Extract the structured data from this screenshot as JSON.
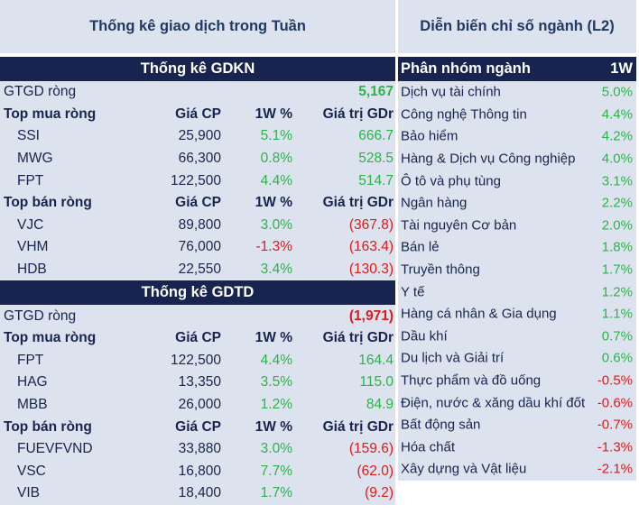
{
  "left_header": "Thống kê giao dịch trong Tuần",
  "right_header": "Diễn biến chỉ số ngành (L2)",
  "colors": {
    "navy": "#17244f",
    "panel_bg": "#dce3ee",
    "positive": "#2db34a",
    "negative": "#e01919"
  },
  "gdkn": {
    "title": "Thống kê GDKN",
    "net_label": "GTGD ròng",
    "net_value": "5,167",
    "buy": {
      "label": "Top mua ròng",
      "col_price": "Giá CP",
      "col_change": "1W %",
      "col_value": "Giá trị GDr",
      "rows": [
        {
          "ticker": "SSI",
          "price": "25,900",
          "change": "5.1%",
          "value": "666.7"
        },
        {
          "ticker": "MWG",
          "price": "66,300",
          "change": "0.8%",
          "value": "528.5"
        },
        {
          "ticker": "FPT",
          "price": "122,500",
          "change": "4.4%",
          "value": "514.7"
        }
      ]
    },
    "sell": {
      "label": "Top bán ròng",
      "col_price": "Giá CP",
      "col_change": "1W %",
      "col_value": "Giá trị GDr",
      "rows": [
        {
          "ticker": "VJC",
          "price": "89,800",
          "change": "3.0%",
          "value": "(367.8)"
        },
        {
          "ticker": "VHM",
          "price": "76,000",
          "change": "-1.3%",
          "value": "(163.4)"
        },
        {
          "ticker": "HDB",
          "price": "22,550",
          "change": "3.4%",
          "value": "(130.3)"
        }
      ]
    }
  },
  "gdtd": {
    "title": "Thống kê GDTD",
    "net_label": "GTGD ròng",
    "net_value": "(1,971)",
    "buy": {
      "label": "Top mua ròng",
      "col_price": "Giá CP",
      "col_change": "1W %",
      "col_value": "Giá trị GDr",
      "rows": [
        {
          "ticker": "FPT",
          "price": "122,500",
          "change": "4.4%",
          "value": "164.4"
        },
        {
          "ticker": "HAG",
          "price": "13,350",
          "change": "3.5%",
          "value": "115.0"
        },
        {
          "ticker": "MBB",
          "price": "26,000",
          "change": "1.2%",
          "value": "84.9"
        }
      ]
    },
    "sell": {
      "label": "Top bán ròng",
      "col_price": "Giá CP",
      "col_change": "1W %",
      "col_value": "Giá trị GDr",
      "rows": [
        {
          "ticker": "FUEVFVND",
          "price": "33,880",
          "change": "3.0%",
          "value": "(159.6)"
        },
        {
          "ticker": "VSC",
          "price": "16,800",
          "change": "7.7%",
          "value": "(62.0)"
        },
        {
          "ticker": "VIB",
          "price": "18,400",
          "change": "1.7%",
          "value": "(9.2)"
        }
      ]
    }
  },
  "sectors": {
    "col_name": "Phân nhóm ngành",
    "col_value": "1W",
    "rows": [
      {
        "name": "Dịch vụ tài chính",
        "value": "5.0%"
      },
      {
        "name": "Công nghệ Thông tin",
        "value": "4.4%"
      },
      {
        "name": "Bảo hiểm",
        "value": "4.2%"
      },
      {
        "name": "Hàng & Dịch vụ Công nghiệp",
        "value": "4.0%"
      },
      {
        "name": "Ô tô và phụ tùng",
        "value": "3.1%"
      },
      {
        "name": "Ngân hàng",
        "value": "2.2%"
      },
      {
        "name": "Tài nguyên Cơ bản",
        "value": "2.0%"
      },
      {
        "name": "Bán lẻ",
        "value": "1.8%"
      },
      {
        "name": "Truyền thông",
        "value": "1.7%"
      },
      {
        "name": "Y tế",
        "value": "1.2%"
      },
      {
        "name": "Hàng cá nhân & Gia dụng",
        "value": "1.1%"
      },
      {
        "name": "Dầu khí",
        "value": "0.7%"
      },
      {
        "name": "Du lịch và Giải trí",
        "value": "0.6%"
      },
      {
        "name": "Thực phẩm và đồ uống",
        "value": "-0.5%"
      },
      {
        "name": "Điện, nước & xăng dầu khí đốt",
        "value": "-0.6%"
      },
      {
        "name": "Bất động sản",
        "value": "-0.7%"
      },
      {
        "name": "Hóa chất",
        "value": "-1.3%"
      },
      {
        "name": "Xây dựng và Vật liệu",
        "value": "-2.1%"
      }
    ]
  }
}
